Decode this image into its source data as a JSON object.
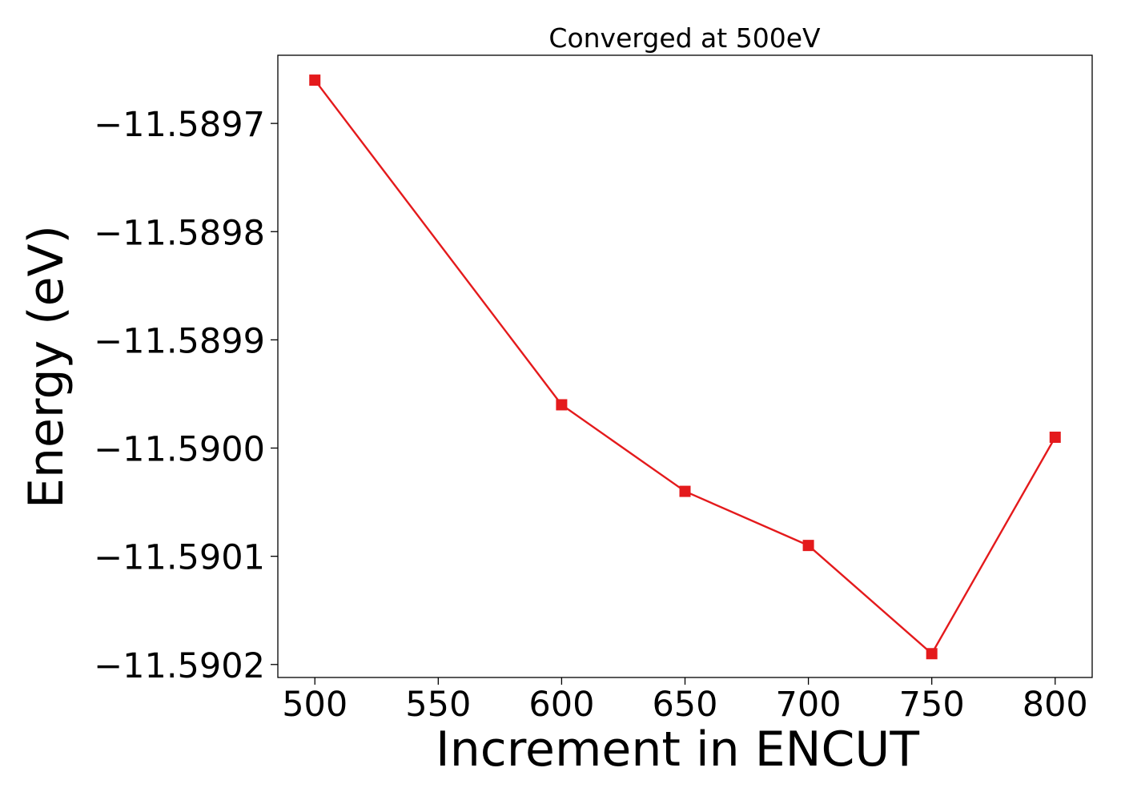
{
  "chart_data": {
    "type": "line",
    "title": "Converged at 500eV",
    "xlabel": "Increment in ENCUT",
    "ylabel": "Energy (eV)",
    "x": [
      500,
      600,
      650,
      700,
      750,
      800
    ],
    "series": [
      {
        "values": [
          -11.58966,
          -11.58996,
          -11.59004,
          -11.59009,
          -11.59019,
          -11.58999
        ],
        "color": "#e41a1c",
        "marker": "square"
      }
    ],
    "xlim": [
      485,
      815
    ],
    "ylim": [
      -11.590212,
      -11.589637
    ],
    "xticks": [
      500,
      550,
      600,
      650,
      700,
      750,
      800
    ],
    "xtick_labels": [
      "500",
      "550",
      "600",
      "650",
      "700",
      "750",
      "800"
    ],
    "yticks": [
      -11.5897,
      -11.5898,
      -11.5899,
      -11.59,
      -11.5901,
      -11.5902
    ],
    "ytick_labels": [
      "−11.5897",
      "−11.5898",
      "−11.5899",
      "−11.5900",
      "−11.5901",
      "−11.5902"
    ],
    "grid": false,
    "legend": false
  }
}
